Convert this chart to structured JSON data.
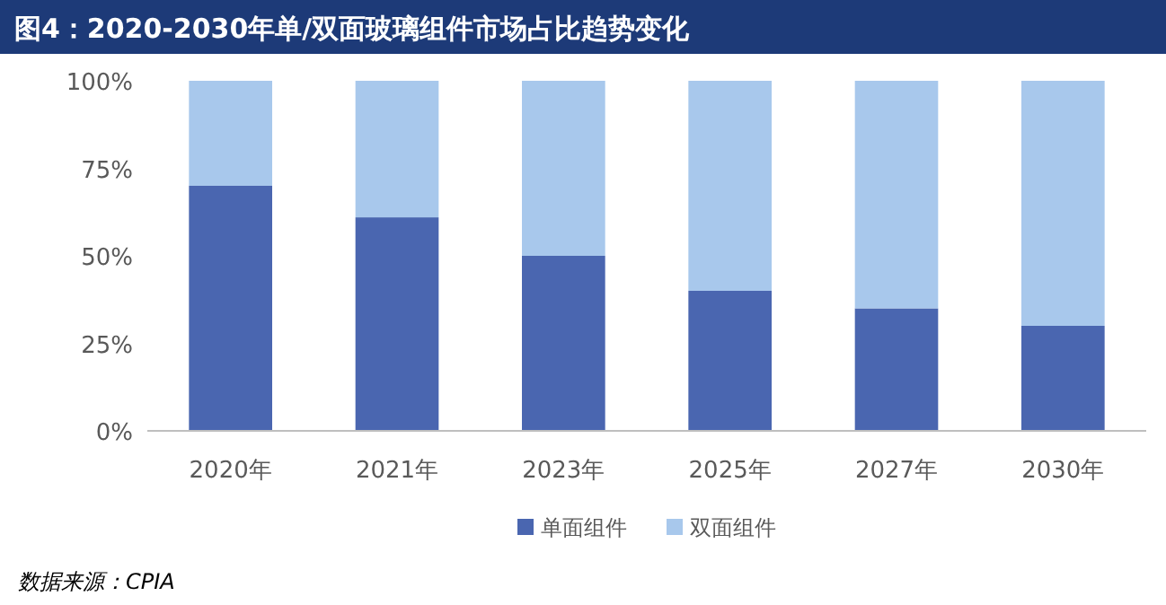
{
  "chart_data": {
    "type": "bar",
    "stacked": true,
    "title": "图4：2020-2030年单/双面玻璃组件市场占比趋势变化",
    "categories": [
      "2020年",
      "2021年",
      "2023年",
      "2025年",
      "2027年",
      "2030年"
    ],
    "series": [
      {
        "name": "单面组件",
        "color": "#4a66b0",
        "values": [
          70,
          61,
          50,
          40,
          35,
          30
        ]
      },
      {
        "name": "双面组件",
        "color": "#a8c8ec",
        "values": [
          30,
          39,
          50,
          60,
          65,
          70
        ]
      }
    ],
    "ylim": [
      0,
      100
    ],
    "yticks": [
      {
        "value": 0,
        "label": "0%"
      },
      {
        "value": 25,
        "label": "25%"
      },
      {
        "value": 50,
        "label": "50%"
      },
      {
        "value": 75,
        "label": "75%"
      },
      {
        "value": 100,
        "label": "100%"
      }
    ],
    "legend": "bottom",
    "annotations": [
      "数据来源：CPIA"
    ]
  }
}
